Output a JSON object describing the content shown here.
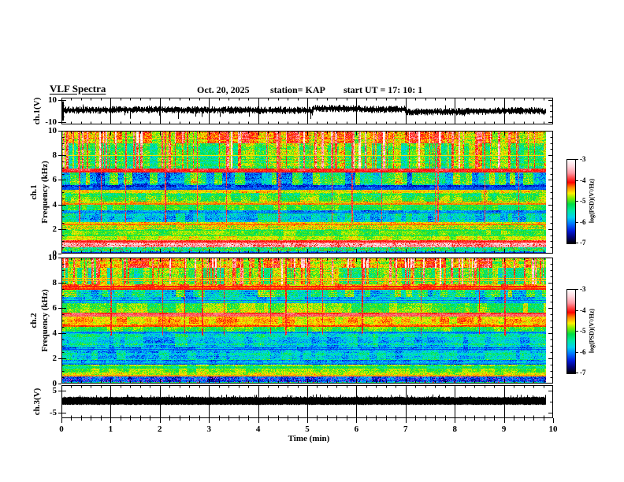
{
  "header": {
    "title": "VLF Spectra",
    "date": "Oct. 20, 2025",
    "station": "station= KAP",
    "start_ut": "start UT =  17: 10: 1"
  },
  "xaxis": {
    "label": "Time (min)",
    "ticks": [
      "0",
      "1",
      "2",
      "3",
      "4",
      "5",
      "6",
      "7",
      "8",
      "9",
      "10"
    ],
    "minutes": [
      0,
      1,
      2,
      3,
      4,
      5,
      6,
      7,
      8,
      9,
      10
    ],
    "minor_step_min": 0.2,
    "xlim": [
      0,
      10
    ],
    "data_end_min": 9.85
  },
  "colorbar": {
    "label": "log(PSD)(V²/Hz)",
    "ticks": [
      "-3",
      "-4",
      "-5",
      "-6",
      "-7"
    ],
    "clim": [
      -3,
      -7
    ],
    "stops": [
      {
        "t": 0.0,
        "c": "#ffffff"
      },
      {
        "t": 0.08,
        "c": "#ffd4dc"
      },
      {
        "t": 0.16,
        "c": "#ff96a0"
      },
      {
        "t": 0.22,
        "c": "#ff4444"
      },
      {
        "t": 0.27,
        "c": "#ff0000"
      },
      {
        "t": 0.33,
        "c": "#ff8800"
      },
      {
        "t": 0.4,
        "c": "#ffee00"
      },
      {
        "t": 0.46,
        "c": "#7dee00"
      },
      {
        "t": 0.53,
        "c": "#00dd44"
      },
      {
        "t": 0.61,
        "c": "#00e8a4"
      },
      {
        "t": 0.69,
        "c": "#00d0f0"
      },
      {
        "t": 0.77,
        "c": "#0070ff"
      },
      {
        "t": 0.85,
        "c": "#0018d8"
      },
      {
        "t": 0.93,
        "c": "#000070"
      },
      {
        "t": 1.0,
        "c": "#000000"
      }
    ]
  },
  "chart_data": [
    {
      "type": "line",
      "name": "ch1-voltage-waveform",
      "ylabel": "ch.1(V)",
      "ylim": [
        -12.5,
        12.5
      ],
      "yticks": [
        {
          "v": 10,
          "label": "10"
        },
        {
          "v": 5,
          "label": ""
        },
        {
          "v": 0,
          "label": ""
        },
        {
          "v": -5,
          "label": ""
        },
        {
          "v": -10,
          "label": "-10"
        }
      ],
      "synth": {
        "seed": 11,
        "mean": 0.8,
        "spread": 2.8,
        "drift_amp": 2.2,
        "down_spike_prob": 0.02,
        "up_spike_prob": 0.008
      }
    },
    {
      "type": "heatmap",
      "name": "ch1-spectrogram",
      "ylabel_ch": "ch.1",
      "ylabel": "Frequency (kHz)",
      "ylim": [
        0,
        10
      ],
      "yticks": [
        {
          "v": 10,
          "label": "10"
        },
        {
          "v": 8,
          "label": "8"
        },
        {
          "v": 6,
          "label": "6"
        },
        {
          "v": 4,
          "label": "4"
        },
        {
          "v": 2,
          "label": "2"
        },
        {
          "v": 0,
          "label": "0"
        }
      ],
      "clim": [
        -7,
        -3
      ],
      "seed": 21,
      "bands": [
        {
          "f": [
            9.0,
            10.0
          ],
          "level": -4.35,
          "noise": 0.45,
          "col": 0.5,
          "streak_density": 0.22,
          "streak_boost": 0.95,
          "streak_group": 1
        },
        {
          "f": [
            6.9,
            9.0
          ],
          "level": -5.05,
          "noise": 0.5,
          "col": 0.45,
          "streak_density": 0.22,
          "streak_boost": 1.15,
          "streak_group": 1
        },
        {
          "f": [
            6.6,
            6.9
          ],
          "level": -4.1,
          "noise": 0.25,
          "col": 0.2
        },
        {
          "f": [
            5.55,
            6.6
          ],
          "level": -5.45,
          "noise": 0.55,
          "col": 0.8
        },
        {
          "f": [
            5.25,
            5.55
          ],
          "level": -6.1,
          "noise": 0.4,
          "col": 0.2
        },
        {
          "f": [
            4.95,
            5.25
          ],
          "level": -4.6,
          "noise": 0.35,
          "col": 0.25
        },
        {
          "f": [
            4.2,
            4.95
          ],
          "level": -5.0,
          "noise": 0.45,
          "col": 0.3
        },
        {
          "f": [
            3.95,
            4.2
          ],
          "level": -4.5,
          "noise": 0.35,
          "col": 0.2
        },
        {
          "f": [
            3.5,
            3.95
          ],
          "level": -5.05,
          "noise": 0.35,
          "col": 0.25
        },
        {
          "f": [
            3.25,
            3.5
          ],
          "level": -5.9,
          "noise": 0.4,
          "col": 0.2
        },
        {
          "f": [
            2.55,
            3.25
          ],
          "level": -5.65,
          "noise": 0.55,
          "col": 0.35
        },
        {
          "f": [
            2.3,
            2.55
          ],
          "level": -4.55,
          "noise": 0.4,
          "col": 0.2
        },
        {
          "f": [
            1.95,
            2.3
          ],
          "level": -4.8,
          "noise": 0.45,
          "col": 0.2
        },
        {
          "f": [
            1.45,
            1.95
          ],
          "level": -5.0,
          "noise": 0.35,
          "col": 0.2
        },
        {
          "f": [
            1.1,
            1.45
          ],
          "level": -4.85,
          "noise": 0.35,
          "col": 0.2
        },
        {
          "f": [
            0.95,
            1.1
          ],
          "level": -4.15,
          "noise": 0.3,
          "col": 0.2
        },
        {
          "f": [
            0.5,
            0.95
          ],
          "level": -3.7,
          "noise": 0.45,
          "col": 0.2,
          "speckle_color": "#dd2200",
          "speckle_density": 0.1
        },
        {
          "f": [
            0.2,
            0.5
          ],
          "level": -5.3,
          "noise": 0.5,
          "col": 0.2,
          "speckle_color": "#cc3333",
          "speckle_density": 0.06
        },
        {
          "f": [
            0.0,
            0.2
          ],
          "level": -5.9,
          "noise": 0.6,
          "col": 0.3
        }
      ],
      "hlines": [
        {
          "f": 8.0,
          "level": -4.6,
          "px": 1
        },
        {
          "f": 6.75,
          "level": -4.0,
          "px": 2
        },
        {
          "f": 5.35,
          "level": -6.2,
          "px": 2
        },
        {
          "f": 5.1,
          "level": -4.4,
          "px": 1
        },
        {
          "f": 4.1,
          "level": -4.3,
          "px": 2
        },
        {
          "f": 3.4,
          "level": -6.0,
          "px": 1
        },
        {
          "f": 2.45,
          "level": -4.3,
          "px": 2
        },
        {
          "f": 2.1,
          "level": -4.4,
          "px": 1
        },
        {
          "f": 1.05,
          "level": -4.0,
          "px": 2
        },
        {
          "f": 0.15,
          "level": -6.3,
          "px": 1
        }
      ],
      "vlines": {
        "at": [
          0.35,
          0.8,
          1.3,
          2.1,
          2.75,
          3.35,
          4.4,
          4.45,
          5.5,
          5.9,
          6.5,
          7.6,
          7.65,
          8.6,
          9.3
        ],
        "f": [
          2.5,
          10
        ],
        "level": -3.9
      }
    },
    {
      "type": "heatmap",
      "name": "ch2-spectrogram",
      "ylabel_ch": "ch.2",
      "ylabel": "Frequency (kHz)",
      "ylim": [
        0,
        10
      ],
      "yticks": [
        {
          "v": 10,
          "label": "10"
        },
        {
          "v": 8,
          "label": "8"
        },
        {
          "v": 6,
          "label": "6"
        },
        {
          "v": 4,
          "label": "4"
        },
        {
          "v": 2,
          "label": "2"
        },
        {
          "v": 0,
          "label": "0"
        }
      ],
      "clim": [
        -7,
        -3
      ],
      "seed": 22,
      "bands": [
        {
          "f": [
            9.2,
            10.0
          ],
          "level": -4.4,
          "noise": 0.45,
          "col": 0.5,
          "streak_density": 0.2,
          "streak_boost": 0.95,
          "streak_group": 1
        },
        {
          "f": [
            7.9,
            9.2
          ],
          "level": -4.95,
          "noise": 0.5,
          "col": 0.5,
          "streak_density": 0.2,
          "streak_boost": 1.1,
          "streak_group": 1
        },
        {
          "f": [
            7.45,
            7.9
          ],
          "level": -4.35,
          "noise": 0.35,
          "col": 0.3
        },
        {
          "f": [
            6.85,
            7.45
          ],
          "level": -5.35,
          "noise": 0.55,
          "col": 0.6
        },
        {
          "f": [
            6.35,
            6.85
          ],
          "level": -5.75,
          "noise": 0.5,
          "col": 0.3
        },
        {
          "f": [
            5.65,
            6.35
          ],
          "level": -4.9,
          "noise": 0.4,
          "col": 0.3
        },
        {
          "f": [
            5.35,
            5.65
          ],
          "level": -3.95,
          "noise": 0.2,
          "col": 0.15
        },
        {
          "f": [
            4.75,
            5.35
          ],
          "level": -4.5,
          "noise": 0.35,
          "col": 0.25
        },
        {
          "f": [
            4.55,
            4.75
          ],
          "level": -4.25,
          "noise": 0.3,
          "col": 0.2
        },
        {
          "f": [
            4.15,
            4.55
          ],
          "level": -5.05,
          "noise": 0.4,
          "col": 0.25
        },
        {
          "f": [
            3.95,
            4.15
          ],
          "level": -5.9,
          "noise": 0.4,
          "col": 0.2
        },
        {
          "f": [
            2.9,
            3.95
          ],
          "level": -5.6,
          "noise": 0.5,
          "col": 0.3
        },
        {
          "f": [
            2.65,
            2.9
          ],
          "level": -6.0,
          "noise": 0.4,
          "col": 0.2
        },
        {
          "f": [
            1.85,
            2.65
          ],
          "level": -5.6,
          "noise": 0.5,
          "col": 0.3
        },
        {
          "f": [
            1.5,
            1.85
          ],
          "level": -5.95,
          "noise": 0.45,
          "col": 0.2
        },
        {
          "f": [
            0.9,
            1.5
          ],
          "level": -5.05,
          "noise": 0.35,
          "col": 0.2
        },
        {
          "f": [
            0.55,
            0.9
          ],
          "level": -4.8,
          "noise": 0.4,
          "col": 0.2
        },
        {
          "f": [
            0.15,
            0.55
          ],
          "level": -6.35,
          "noise": 0.5,
          "col": 0.25,
          "speckle_color": "#bb44cc",
          "speckle_density": 0.12
        },
        {
          "f": [
            0.0,
            0.15
          ],
          "level": -5.6,
          "noise": 0.6,
          "col": 0.3,
          "speckle_color": "#cc3333",
          "speckle_density": 0.06
        }
      ],
      "hlines": [
        {
          "f": 8.35,
          "level": -4.5,
          "px": 1
        },
        {
          "f": 8.2,
          "level": -4.45,
          "px": 1
        },
        {
          "f": 7.75,
          "level": -4.05,
          "px": 2
        },
        {
          "f": 7.55,
          "level": -4.1,
          "px": 2
        },
        {
          "f": 6.6,
          "level": -6.1,
          "px": 1
        },
        {
          "f": 6.45,
          "level": -5.9,
          "px": 1
        },
        {
          "f": 5.5,
          "level": -3.8,
          "px": 3
        },
        {
          "f": 4.65,
          "level": -4.2,
          "px": 2
        },
        {
          "f": 4.05,
          "level": -6.1,
          "px": 1
        },
        {
          "f": 2.75,
          "level": -6.2,
          "px": 1
        },
        {
          "f": 1.6,
          "level": -6.0,
          "px": 1
        },
        {
          "f": 0.7,
          "level": -4.4,
          "px": 2
        }
      ],
      "vlines": {
        "at": [
          1.0,
          2.05,
          2.5,
          2.85,
          3.3,
          4.25,
          4.55,
          5.0,
          5.3,
          6.1,
          7.3,
          8.5,
          9.0
        ],
        "f": [
          3.8,
          10
        ],
        "level": -4.0
      }
    },
    {
      "type": "line",
      "name": "ch3-voltage-band",
      "ylabel": "ch.3(V)",
      "ylim": [
        -7.3,
        7.3
      ],
      "yticks": [
        {
          "v": 5,
          "label": "5"
        },
        {
          "v": 0,
          "label": ""
        },
        {
          "v": -5,
          "label": "-5"
        }
      ],
      "band": [
        -1.2,
        1.8
      ],
      "synth": {
        "seed": 33,
        "spike_prob": 0.06
      }
    }
  ]
}
